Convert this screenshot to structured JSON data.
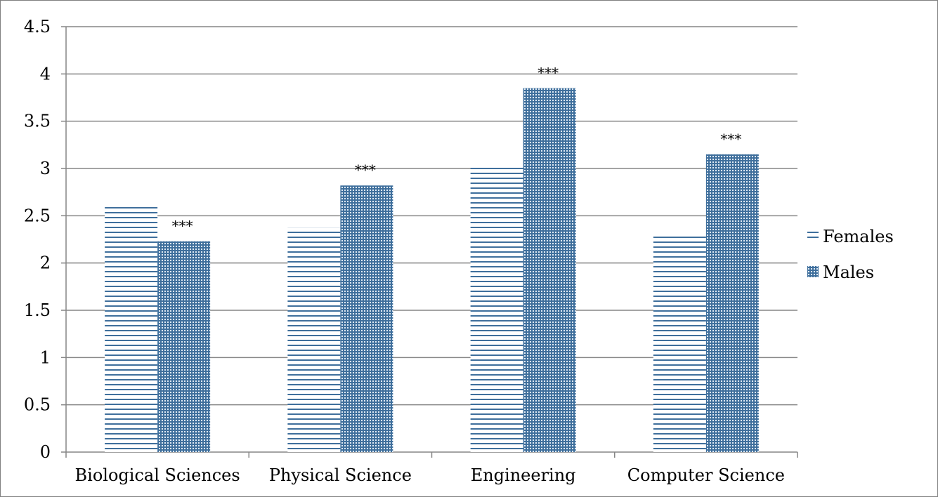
{
  "chart_data": {
    "type": "bar",
    "categories": [
      "Biological Sciences",
      "Physical Science",
      "Engineering",
      "Computer Science"
    ],
    "series": [
      {
        "name": "Females",
        "values": [
          2.6,
          2.37,
          3.03,
          2.3
        ],
        "pattern": "horizontal-stripes",
        "color": "#3f6f9c"
      },
      {
        "name": "Males",
        "values": [
          2.23,
          2.82,
          3.85,
          3.15
        ],
        "pattern": "dots",
        "color": "#3f6f9c"
      }
    ],
    "significance": [
      "***",
      "***",
      "***",
      "***"
    ],
    "ylim": [
      0,
      4.5
    ],
    "yticks": [
      "0",
      "0.5",
      "1",
      "1.5",
      "2",
      "2.5",
      "3",
      "3.5",
      "4",
      "4.5"
    ],
    "title": "",
    "xlabel": "",
    "ylabel": "",
    "grid": true,
    "legend_position": "right"
  }
}
